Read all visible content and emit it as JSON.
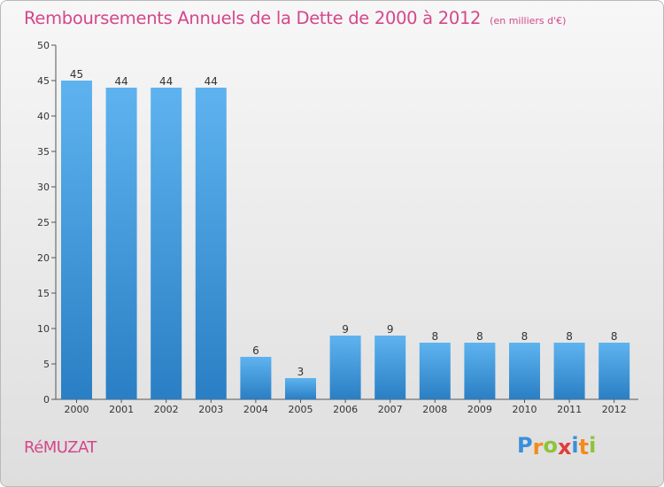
{
  "title": "Remboursements Annuels de la Dette de 2000 à 2012",
  "unit_note": "(en milliers d'€)",
  "commune": "RéMUZAT",
  "logo": {
    "letters": [
      "P",
      "r",
      "o",
      "x",
      "i",
      "t",
      "i"
    ],
    "colors": [
      "#3a8fd9",
      "#f28c1b",
      "#8cc43a",
      "#e23c3c",
      "#3a8fd9",
      "#f28c1b",
      "#8cc43a"
    ]
  },
  "colors": {
    "bar_top": "#5eb3ef",
    "bar_bottom": "#2a7fc4",
    "title": "#d4478b"
  },
  "chart_data": {
    "type": "bar",
    "categories": [
      "2000",
      "2001",
      "2002",
      "2003",
      "2004",
      "2005",
      "2006",
      "2007",
      "2008",
      "2009",
      "2010",
      "2011",
      "2012"
    ],
    "values": [
      45,
      44,
      44,
      44,
      6,
      3,
      9,
      9,
      8,
      8,
      8,
      8,
      8
    ],
    "data_labels": [
      "45",
      "44",
      "44",
      "44",
      "6",
      "3",
      "9",
      "9",
      "8",
      "8",
      "8",
      "8",
      "8"
    ],
    "title": "Remboursements Annuels de la Dette de 2000 à 2012",
    "xlabel": "",
    "ylabel": "",
    "ylim": [
      0,
      50
    ],
    "yticks": [
      0,
      5,
      10,
      15,
      20,
      25,
      30,
      35,
      40,
      45,
      50
    ],
    "grid": false
  }
}
